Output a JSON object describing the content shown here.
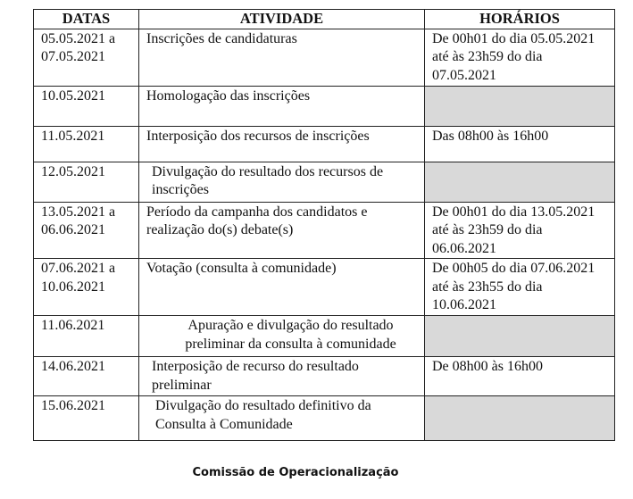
{
  "table": {
    "headers": [
      "DATAS",
      "ATIVIDADE",
      "HORÁRIOS"
    ],
    "rows": [
      {
        "date": "05.05.2021 a 07.05.2021",
        "activity": "Inscrições de candidaturas",
        "time": "De 00h01 do dia 05.05.2021 até às 23h59 do dia 07.05.2021",
        "shaded": false
      },
      {
        "date": "10.05.2021",
        "activity": "Homologação das inscrições",
        "time": "",
        "shaded": true
      },
      {
        "date": "11.05.2021",
        "activity": "Interposição dos recursos de inscrições",
        "time": "Das 08h00 às 16h00",
        "shaded": false
      },
      {
        "date": "12.05.2021",
        "activity": "Divulgação do resultado dos recursos de inscrições",
        "time": "",
        "shaded": true
      },
      {
        "date": "13.05.2021 a 06.06.2021",
        "activity": "Período da campanha dos candidatos e realização do(s) debate(s)",
        "time": "De 00h01 do dia 13.05.2021 até às 23h59 do dia 06.06.2021",
        "shaded": false
      },
      {
        "date": "07.06.2021 a 10.06.2021",
        "activity": "Votação (consulta à comunidade)",
        "time": "De 00h05 do dia 07.06.2021 até às 23h55 do dia 10.06.2021",
        "shaded": false
      },
      {
        "date": "11.06.2021",
        "activity": "Apuração e divulgação do resultado preliminar da consulta à comunidade",
        "time": "",
        "shaded": true
      },
      {
        "date": "14.06.2021",
        "activity": "Interposição de recurso do resultado preliminar",
        "time": "De 08h00 às 16h00",
        "shaded": false
      },
      {
        "date": "15.06.2021",
        "activity": "Divulgação do resultado definitivo da Consulta à Comunidade",
        "time": "",
        "shaded": true
      }
    ],
    "shade_color": "#d9d9d9"
  },
  "footer": {
    "signature": "Comissão de Operacionalização"
  }
}
